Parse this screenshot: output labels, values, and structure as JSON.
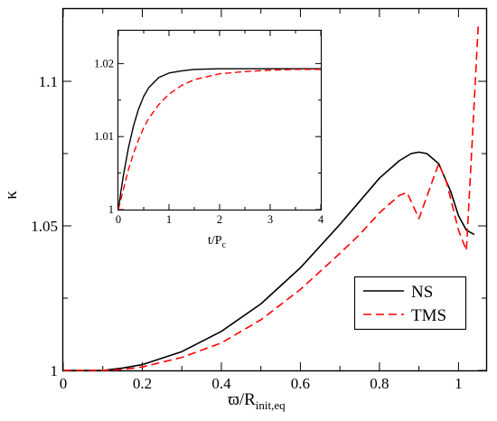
{
  "chart_data": [
    {
      "id": "main",
      "type": "line",
      "xlabel": "ϖ/R",
      "xlabel_sub": "init,eq",
      "ylabel": "κ",
      "xlim": [
        0,
        1.07
      ],
      "ylim": [
        1.0,
        1.125
      ],
      "xticks": [
        0,
        0.2,
        0.4,
        0.6,
        0.8,
        1
      ],
      "xtick_labels": [
        "0",
        "0.2",
        "0.4",
        "0.6",
        "0.8",
        "1"
      ],
      "yticks": [
        1.0,
        1.05,
        1.1
      ],
      "ytick_labels": [
        "1",
        "1.05",
        "1.1"
      ],
      "grid": false,
      "legend_position": "bottom-right",
      "series": [
        {
          "name": "NS",
          "color": "#000000",
          "style": "solid",
          "x": [
            0,
            0.1,
            0.15,
            0.2,
            0.3,
            0.4,
            0.5,
            0.6,
            0.7,
            0.75,
            0.8,
            0.85,
            0.88,
            0.9,
            0.92,
            0.95,
            0.98,
            1.0,
            1.02,
            1.04
          ],
          "y": [
            1.0,
            1.0,
            1.0008,
            1.002,
            1.0065,
            1.0135,
            1.023,
            1.0355,
            1.0505,
            1.0585,
            1.0665,
            1.0725,
            1.075,
            1.0755,
            1.075,
            1.0715,
            1.062,
            1.0535,
            1.0485,
            1.047
          ]
        },
        {
          "name": "TMS",
          "color": "#ff0000",
          "style": "dashed",
          "x": [
            0,
            0.1,
            0.15,
            0.2,
            0.3,
            0.4,
            0.5,
            0.6,
            0.7,
            0.75,
            0.8,
            0.85,
            0.87,
            0.9,
            0.93,
            0.95,
            0.97,
            1.0,
            1.02,
            1.035,
            1.05
          ],
          "y": [
            1.0,
            1.0,
            1.0003,
            1.0012,
            1.0045,
            1.0095,
            1.0175,
            1.028,
            1.0405,
            1.047,
            1.0545,
            1.0605,
            1.0615,
            1.0525,
            1.064,
            1.0715,
            1.065,
            1.0485,
            1.0415,
            1.08,
            1.1195
          ]
        }
      ]
    },
    {
      "id": "inset",
      "type": "line",
      "xlabel": "t/P",
      "xlabel_sub": "c",
      "ylabel": "",
      "xlim": [
        0,
        4
      ],
      "ylim": [
        1.0,
        1.0245
      ],
      "xticks": [
        0,
        1,
        2,
        3,
        4
      ],
      "xtick_labels": [
        "0",
        "1",
        "2",
        "3",
        "4"
      ],
      "yticks": [
        1.0,
        1.01,
        1.02
      ],
      "ytick_labels": [
        "1",
        "1.01",
        "1.02"
      ],
      "grid": false,
      "series": [
        {
          "name": "",
          "color": "#000000",
          "style": "solid",
          "x": [
            0,
            0.05,
            0.1,
            0.2,
            0.3,
            0.4,
            0.5,
            0.6,
            0.8,
            1.0,
            1.25,
            1.5,
            2.0,
            2.5,
            3.0,
            3.5,
            4.0
          ],
          "y": [
            1.0,
            1.0025,
            1.0047,
            1.0085,
            1.0115,
            1.0138,
            1.0155,
            1.0167,
            1.0181,
            1.0187,
            1.019,
            1.0192,
            1.0193,
            1.0193,
            1.0193,
            1.0193,
            1.0193
          ]
        },
        {
          "name": "",
          "color": "#ff0000",
          "style": "dashed",
          "x": [
            0,
            0.1,
            0.2,
            0.3,
            0.4,
            0.5,
            0.6,
            0.8,
            1.0,
            1.25,
            1.5,
            2.0,
            2.5,
            3.0,
            3.5,
            4.0
          ],
          "y": [
            1.0,
            1.0028,
            1.0055,
            1.0077,
            1.0096,
            1.0112,
            1.0125,
            1.0144,
            1.0158,
            1.017,
            1.0178,
            1.0186,
            1.0189,
            1.0191,
            1.0192,
            1.0192
          ]
        }
      ]
    }
  ]
}
